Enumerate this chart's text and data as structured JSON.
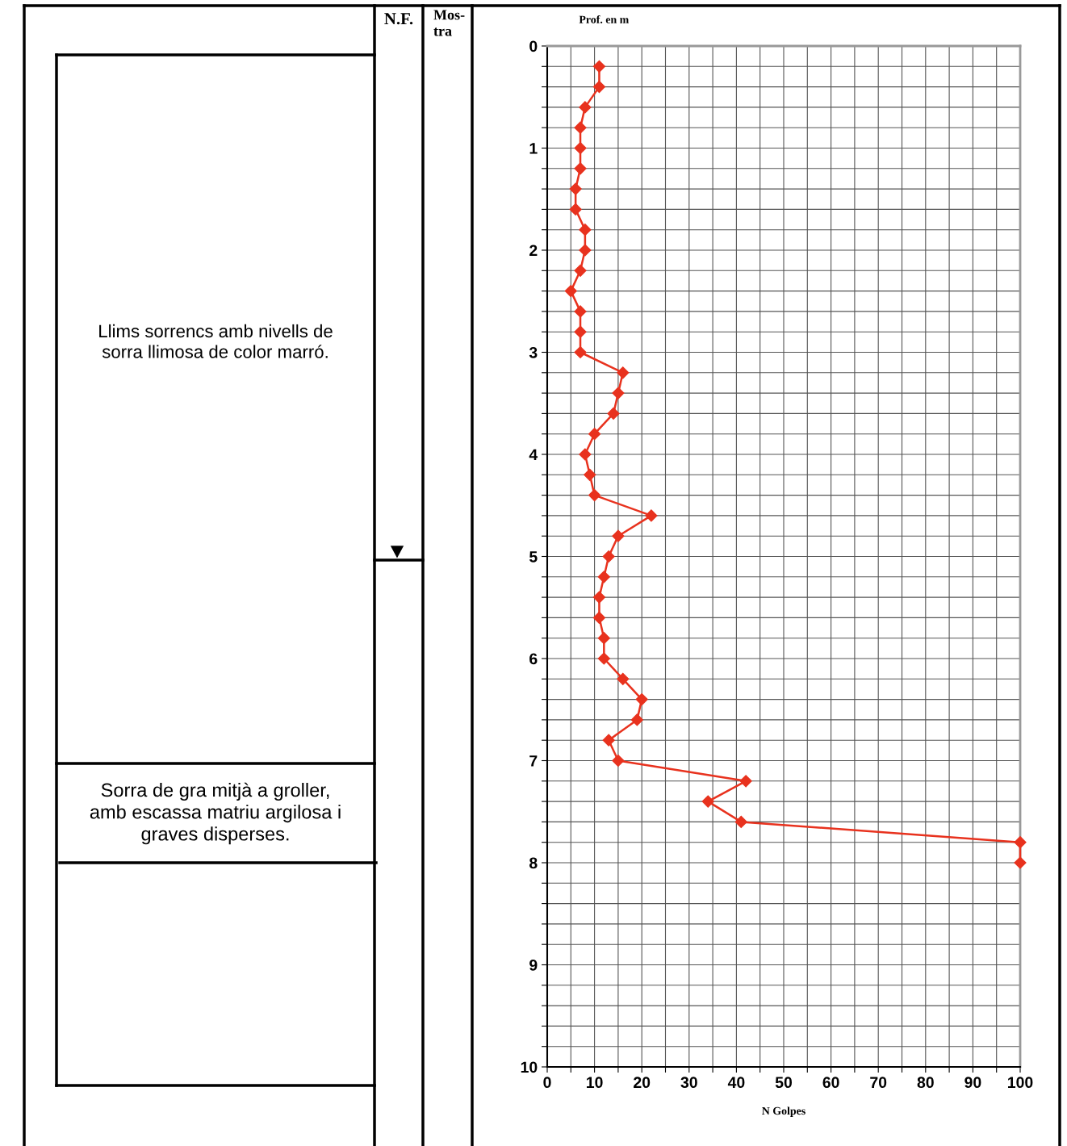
{
  "chart_data": {
    "type": "line",
    "xlabel": "N Golpes",
    "ylabel": "Prof. en m",
    "annotations": [
      "N.F.",
      "Mos-\ntra",
      "Llims sorrencs amb nivells de\nsorra llimosa de color marró.",
      "Sorra de gra mitjà a groller,\namb escassa matriu argilosa i\ngraves disperses."
    ],
    "series": [
      {
        "color": "#e8321e",
        "x": [
          11,
          11,
          8,
          7,
          7,
          7,
          6,
          6,
          8,
          8,
          7,
          5,
          7,
          7,
          7,
          16,
          15,
          14,
          10,
          8,
          9,
          10,
          22,
          15,
          13,
          12,
          11,
          11,
          12,
          12,
          16,
          20,
          19,
          13,
          15,
          42,
          34,
          41,
          100,
          100
        ],
        "values": [
          0.2,
          0.4,
          0.6,
          0.8,
          1.0,
          1.2,
          1.4,
          1.6,
          1.8,
          2.0,
          2.2,
          2.4,
          2.6,
          2.8,
          3.0,
          3.2,
          3.4,
          3.6,
          3.8,
          4.0,
          4.2,
          4.4,
          4.6,
          4.8,
          5.0,
          5.2,
          5.4,
          5.6,
          5.8,
          6.0,
          6.2,
          6.4,
          6.6,
          6.8,
          7.0,
          7.2,
          7.4,
          7.6,
          7.8,
          8.0
        ]
      }
    ],
    "xlim": [
      0,
      100
    ],
    "ylim": [
      10,
      0
    ],
    "xticks": [
      0,
      {
        "value": 5,
        "label": null
      },
      10,
      {
        "value": 15,
        "label": null
      },
      20,
      {
        "value": 25,
        "label": null
      },
      30,
      {
        "value": 35,
        "label": null
      },
      40,
      {
        "value": 45,
        "label": null
      },
      50,
      {
        "value": 55,
        "label": null
      },
      60,
      {
        "value": 65,
        "label": null
      },
      70,
      {
        "value": 75,
        "label": null
      },
      80,
      {
        "value": 85,
        "label": null
      },
      90,
      {
        "value": 95,
        "label": null
      },
      100
    ],
    "yticks": [
      0,
      {
        "value": 0.2,
        "label": null
      },
      {
        "value": 0.4,
        "label": null
      },
      {
        "value": 0.6,
        "label": null
      },
      {
        "value": 0.8,
        "label": null
      },
      1,
      {
        "value": 1.2,
        "label": null
      },
      {
        "value": 1.4,
        "label": null
      },
      {
        "value": 1.6,
        "label": null
      },
      {
        "value": 1.8,
        "label": null
      },
      2,
      {
        "value": 2.2,
        "label": null
      },
      {
        "value": 2.4,
        "label": null
      },
      {
        "value": 2.6,
        "label": null
      },
      {
        "value": 2.8,
        "label": null
      },
      3,
      {
        "value": 3.2,
        "label": null
      },
      {
        "value": 3.4,
        "label": null
      },
      {
        "value": 3.6,
        "label": null
      },
      {
        "value": 3.8,
        "label": null
      },
      4,
      {
        "value": 4.2,
        "label": null
      },
      {
        "value": 4.4,
        "label": null
      },
      {
        "value": 4.6,
        "label": null
      },
      {
        "value": 4.8,
        "label": null
      },
      5,
      {
        "value": 5.2,
        "label": null
      },
      {
        "value": 5.4,
        "label": null
      },
      {
        "value": 5.6,
        "label": null
      },
      {
        "value": 5.8,
        "label": null
      },
      6,
      {
        "value": 6.2,
        "label": null
      },
      {
        "value": 6.4,
        "label": null
      },
      {
        "value": 6.6,
        "label": null
      },
      {
        "value": 6.8,
        "label": null
      },
      7,
      {
        "value": 7.2,
        "label": null
      },
      {
        "value": 7.4,
        "label": null
      },
      {
        "value": 7.6,
        "label": null
      },
      {
        "value": 7.8,
        "label": null
      },
      8,
      {
        "value": 8.2,
        "label": null
      },
      {
        "value": 8.4,
        "label": null
      },
      {
        "value": 8.6,
        "label": null
      },
      {
        "value": 8.8,
        "label": null
      },
      9,
      {
        "value": 9.2,
        "label": null
      },
      {
        "value": 9.4,
        "label": null
      },
      {
        "value": 9.6,
        "label": null
      },
      {
        "value": 9.8,
        "label": null
      },
      10
    ],
    "grid": true,
    "marker": "diamond",
    "line_style": "solid"
  }
}
